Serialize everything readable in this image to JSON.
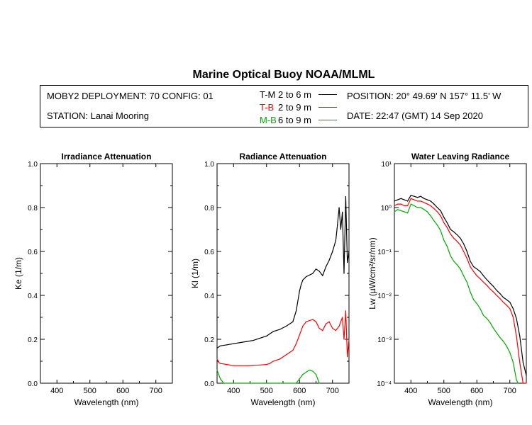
{
  "title": "Marine Optical Buoy NOAA/MLML",
  "info": {
    "deployment": "MOBY2 DEPLOYMENT: 70 CONFIG: 01",
    "station": "STATION: Lanai Mooring",
    "position": "POSITION: 20° 49.69' N   157° 11.5' W",
    "date": "DATE: 22:47 (GMT) 14 Sep 2020"
  },
  "legend": [
    {
      "label": "T-M",
      "range": "2 to 6  m",
      "color": "#000000"
    },
    {
      "label": "T-B",
      "range": "2 to 9  m",
      "color": "#ff0000"
    },
    {
      "label": "M-B",
      "range": "6 to 9  m",
      "color": "#00aa00"
    }
  ],
  "chart_data": [
    {
      "type": "line",
      "title": "Irradiance Attenuation",
      "xlabel": "Wavelength (nm)",
      "ylabel": "Ke  (1/m)",
      "xlim": [
        350,
        750
      ],
      "ylim": [
        0,
        1.0
      ],
      "xticks": [
        400,
        500,
        600,
        700
      ],
      "yticks": [
        0.0,
        0.2,
        0.4,
        0.6,
        0.8,
        1.0
      ],
      "ytick_labels": [
        "0.0",
        "0.2",
        "0.4",
        "0.6",
        "0.8",
        "1.0"
      ],
      "series": []
    },
    {
      "type": "line",
      "title": "Radiance Attenuation",
      "xlabel": "Wavelength (nm)",
      "ylabel": "Kl  (1/m)",
      "xlim": [
        350,
        750
      ],
      "ylim": [
        0,
        1.0
      ],
      "xticks": [
        400,
        500,
        600,
        700
      ],
      "yticks": [
        0.0,
        0.2,
        0.4,
        0.6,
        0.8,
        1.0
      ],
      "ytick_labels": [
        "0.0",
        "0.2",
        "0.4",
        "0.6",
        "0.8",
        "1.0"
      ],
      "series": [
        {
          "name": "T-M",
          "color": "#000000",
          "x": [
            350,
            360,
            380,
            400,
            420,
            440,
            460,
            480,
            500,
            510,
            520,
            540,
            560,
            580,
            590,
            600,
            605,
            610,
            620,
            640,
            650,
            660,
            670,
            680,
            690,
            700,
            710,
            715,
            720,
            725,
            730,
            735,
            740,
            745,
            750
          ],
          "y": [
            0.16,
            0.17,
            0.175,
            0.18,
            0.185,
            0.19,
            0.195,
            0.205,
            0.215,
            0.225,
            0.235,
            0.245,
            0.26,
            0.28,
            0.33,
            0.42,
            0.45,
            0.47,
            0.485,
            0.5,
            0.52,
            0.51,
            0.49,
            0.53,
            0.56,
            0.6,
            0.65,
            0.72,
            0.8,
            0.7,
            0.78,
            0.5,
            0.85,
            0.55,
            0.6
          ]
        },
        {
          "name": "T-B",
          "color": "#ff0000",
          "x": [
            350,
            355,
            360,
            380,
            400,
            420,
            440,
            460,
            480,
            500,
            510,
            520,
            540,
            560,
            580,
            590,
            600,
            610,
            620,
            640,
            650,
            660,
            670,
            680,
            690,
            700,
            710,
            720,
            730,
            735,
            740,
            745,
            750
          ],
          "y": [
            0.11,
            0.095,
            0.09,
            0.085,
            0.08,
            0.08,
            0.08,
            0.082,
            0.083,
            0.085,
            0.09,
            0.1,
            0.11,
            0.13,
            0.15,
            0.18,
            0.22,
            0.26,
            0.28,
            0.29,
            0.28,
            0.25,
            0.24,
            0.27,
            0.28,
            0.25,
            0.24,
            0.26,
            0.3,
            0.2,
            0.33,
            0.12,
            0.2
          ]
        },
        {
          "name": "M-B",
          "color": "#00aa00",
          "x": [
            350,
            355,
            360,
            365,
            370,
            380,
            590,
            600,
            610,
            620,
            630,
            640,
            650,
            655,
            660
          ],
          "y": [
            0.06,
            0.04,
            0.02,
            0.01,
            0.0,
            0.0,
            0.0,
            0.02,
            0.04,
            0.05,
            0.06,
            0.055,
            0.04,
            0.02,
            0.0
          ]
        }
      ]
    },
    {
      "type": "line",
      "title": "Water Leaving Radiance",
      "xlabel": "Wavelength (nm)",
      "ylabel": "Lw  (µW/cm²/sr/nm)",
      "yscale": "log",
      "xlim": [
        350,
        750
      ],
      "ylim": [
        0.0001,
        10
      ],
      "xticks": [
        400,
        500,
        600,
        700
      ],
      "yticks": [
        0.0001,
        0.001,
        0.01,
        0.1,
        1,
        10
      ],
      "ytick_labels": [
        "10⁻⁴",
        "10⁻³",
        "10⁻²",
        "10⁻¹",
        "10⁰",
        "10¹"
      ],
      "series": [
        {
          "name": "T-M",
          "color": "#000000",
          "x": [
            350,
            360,
            370,
            380,
            390,
            400,
            410,
            420,
            430,
            440,
            450,
            460,
            470,
            480,
            490,
            500,
            510,
            520,
            530,
            540,
            550,
            560,
            570,
            580,
            590,
            600,
            610,
            620,
            630,
            640,
            650,
            660,
            670,
            680,
            690,
            700,
            710,
            720,
            730,
            740,
            750
          ],
          "y": [
            1.4,
            1.5,
            1.6,
            1.5,
            1.4,
            1.9,
            1.8,
            1.7,
            1.8,
            1.6,
            1.5,
            1.4,
            1.2,
            1.0,
            0.85,
            0.6,
            0.45,
            0.32,
            0.28,
            0.24,
            0.2,
            0.15,
            0.1,
            0.06,
            0.045,
            0.04,
            0.035,
            0.028,
            0.023,
            0.019,
            0.016,
            0.013,
            0.011,
            0.009,
            0.008,
            0.007,
            0.005,
            0.003,
            0.0012,
            0.0003,
            0.00015
          ]
        },
        {
          "name": "T-B",
          "color": "#ff0000",
          "x": [
            350,
            360,
            370,
            380,
            390,
            400,
            410,
            420,
            430,
            440,
            450,
            460,
            470,
            480,
            490,
            500,
            510,
            520,
            530,
            540,
            550,
            560,
            570,
            580,
            590,
            600,
            610,
            620,
            630,
            640,
            650,
            660,
            670,
            680,
            690,
            700,
            710,
            720,
            730,
            740,
            750
          ],
          "y": [
            1.1,
            1.2,
            1.2,
            1.1,
            1.1,
            1.6,
            1.5,
            1.4,
            1.4,
            1.3,
            1.2,
            1.1,
            0.95,
            0.8,
            0.65,
            0.45,
            0.35,
            0.25,
            0.2,
            0.17,
            0.14,
            0.1,
            0.07,
            0.045,
            0.035,
            0.028,
            0.024,
            0.02,
            0.017,
            0.014,
            0.012,
            0.01,
            0.0085,
            0.007,
            0.006,
            0.005,
            0.0032,
            0.0012,
            0.0003,
            0.0001,
            0.0001
          ]
        },
        {
          "name": "M-B",
          "color": "#00aa00",
          "x": [
            350,
            360,
            370,
            380,
            390,
            400,
            410,
            420,
            430,
            440,
            450,
            460,
            470,
            480,
            490,
            500,
            510,
            520,
            530,
            540,
            550,
            560,
            570,
            580,
            590,
            600,
            610,
            620,
            630,
            640,
            650,
            660,
            670,
            680,
            690,
            700,
            710,
            720,
            725
          ],
          "y": [
            0.8,
            0.9,
            0.85,
            0.8,
            0.75,
            1.2,
            1.1,
            1.0,
            1.0,
            0.9,
            0.8,
            0.65,
            0.5,
            0.4,
            0.3,
            0.18,
            0.13,
            0.08,
            0.06,
            0.05,
            0.04,
            0.028,
            0.02,
            0.012,
            0.008,
            0.0065,
            0.005,
            0.0035,
            0.003,
            0.0024,
            0.0018,
            0.0014,
            0.0011,
            0.0009,
            0.0007,
            0.0005,
            0.0003,
            0.00012,
            0.0001
          ]
        }
      ]
    }
  ]
}
